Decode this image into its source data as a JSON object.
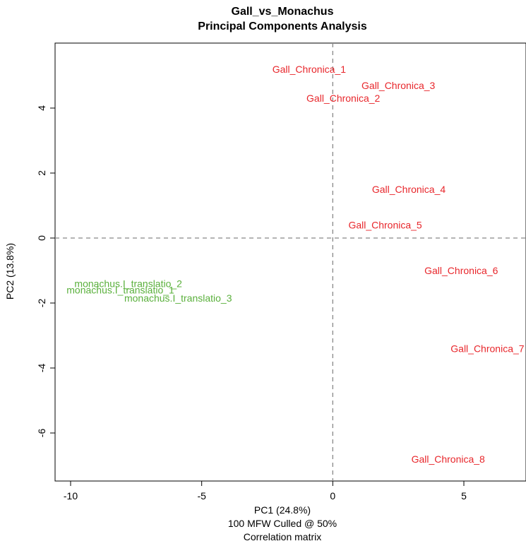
{
  "chart_data": {
    "type": "scatter",
    "title": "Gall_vs_Monachus",
    "subtitle": "Principal Components Analysis",
    "xlabel": "PC1 (24.8%)",
    "xlabel_lines": [
      "100 MFW  Culled @ 50%",
      "Correlation matrix"
    ],
    "ylabel": "PC2 (13.8%)",
    "xlim": [
      -10.6,
      7.5
    ],
    "ylim": [
      -7.5,
      6.3
    ],
    "x_ticks": [
      -10,
      -5,
      0,
      5
    ],
    "y_ticks": [
      -6,
      -4,
      -2,
      0,
      2,
      4
    ],
    "reference_lines": {
      "x": 0,
      "y": 0,
      "style": "dashed"
    },
    "grid": false,
    "series": [
      {
        "name": "Gall_Chronica",
        "color": "#e8262b",
        "points": [
          {
            "label": "Gall_Chronica_1",
            "x": -0.9,
            "y": 5.2
          },
          {
            "label": "Gall_Chronica_3",
            "x": 2.5,
            "y": 4.7
          },
          {
            "label": "Gall_Chronica_2",
            "x": 0.4,
            "y": 4.3
          },
          {
            "label": "Gall_Chronica_4",
            "x": 2.9,
            "y": 1.5
          },
          {
            "label": "Gall_Chronica_5",
            "x": 2.0,
            "y": 0.4
          },
          {
            "label": "Gall_Chronica_6",
            "x": 4.9,
            "y": -1.0
          },
          {
            "label": "Gall_Chronica_7",
            "x": 5.9,
            "y": -3.4
          },
          {
            "label": "Gall_Chronica_8",
            "x": 4.4,
            "y": -6.8
          }
        ]
      },
      {
        "name": "monachus.I_translatio",
        "color": "#5ab03c",
        "points": [
          {
            "label": "monachus.I_translatio_2",
            "x": -7.8,
            "y": -1.4
          },
          {
            "label": "monachus.I_translatio_1",
            "x": -8.1,
            "y": -1.6
          },
          {
            "label": "monachus.I_translatio_3",
            "x": -5.9,
            "y": -1.85
          }
        ]
      }
    ]
  }
}
